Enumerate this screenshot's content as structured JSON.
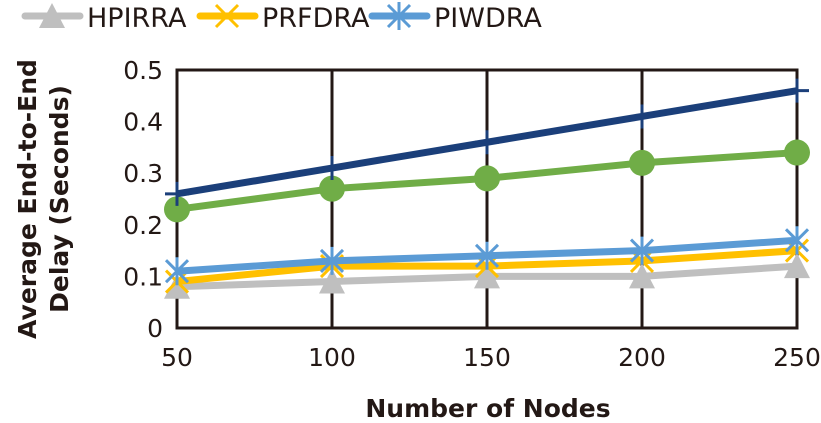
{
  "chart_data": {
    "type": "line",
    "title": "",
    "xlabel": "Number of Nodes",
    "ylabel_lines": [
      "Average End-to-End",
      "Delay (Seconds)"
    ],
    "x": [
      50,
      100,
      150,
      200,
      250
    ],
    "x_tick_labels": [
      "50",
      "100",
      "150",
      "200",
      "250"
    ],
    "y_tick_labels": [
      "0",
      "0.1",
      "0.2",
      "0.3",
      "0.4",
      "0.5"
    ],
    "y_ticks": [
      0,
      0.1,
      0.2,
      0.3,
      0.4,
      0.5
    ],
    "ylim": [
      0,
      0.5
    ],
    "xlim": [
      50,
      250
    ],
    "grid": "vertical",
    "legend_position": "top",
    "series": [
      {
        "name": "HPIRRA",
        "color": "#BFBFBF",
        "marker": "triangle",
        "in_legend": true,
        "values": [
          0.08,
          0.09,
          0.1,
          0.1,
          0.12
        ]
      },
      {
        "name": "PRFDRA",
        "color": "#FFC000",
        "marker": "x",
        "in_legend": true,
        "values": [
          0.09,
          0.12,
          0.12,
          0.13,
          0.15
        ]
      },
      {
        "name": "PIWDRA",
        "color": "#5B9BD5",
        "marker": "star",
        "in_legend": true,
        "values": [
          0.11,
          0.13,
          0.14,
          0.15,
          0.17
        ]
      },
      {
        "name": "",
        "color": "#70AD47",
        "marker": "circle",
        "in_legend": false,
        "values": [
          0.23,
          0.27,
          0.29,
          0.32,
          0.34
        ]
      },
      {
        "name": "",
        "color": "#1B3F7A",
        "marker": "plus",
        "in_legend": false,
        "values": [
          0.26,
          0.31,
          0.36,
          0.41,
          0.46
        ]
      }
    ]
  }
}
